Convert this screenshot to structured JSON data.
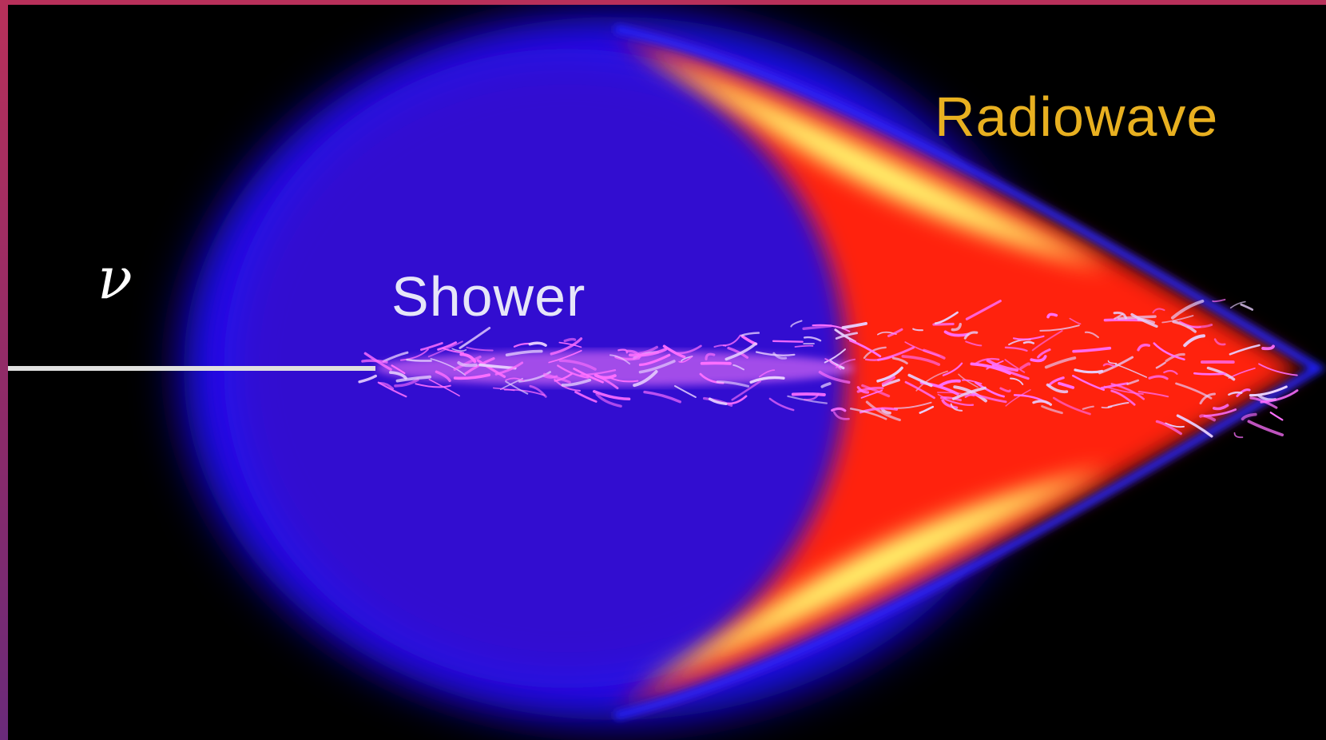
{
  "labels": {
    "neutrino": "ν",
    "shower": "Shower",
    "radiowave": "Radiowave"
  },
  "colors": {
    "background": "#000000",
    "cloud_blue": "#1a10ff",
    "cone_red": "#ff1010",
    "cone_yellow": "#ffff40",
    "track": "#ff66ff",
    "radiowave_text": "#e8b020",
    "shower_text": "#e6e6f8"
  }
}
